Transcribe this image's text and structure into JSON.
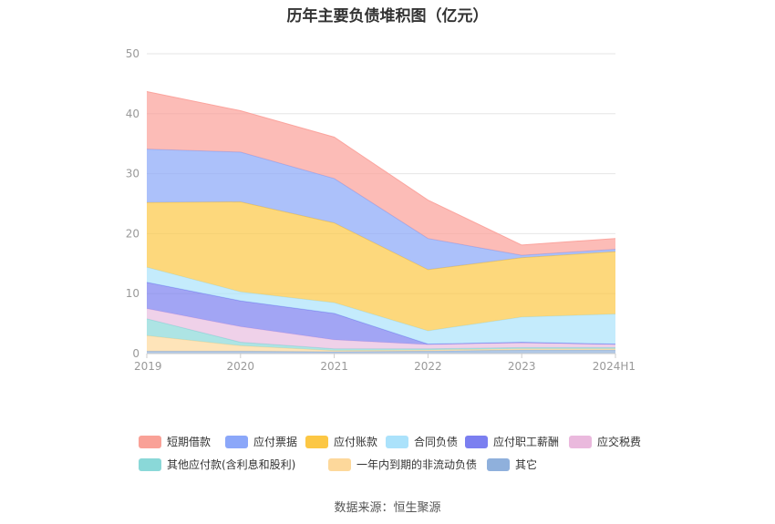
{
  "title": "历年主要负债堆积图（亿元）",
  "source": "数据来源：恒生聚源",
  "chart_data": {
    "type": "area",
    "stacked": true,
    "categories": [
      "2019",
      "2020",
      "2021",
      "2022",
      "2023",
      "2024H1"
    ],
    "ylim": [
      0,
      50
    ],
    "yticks": [
      0,
      10,
      20,
      30,
      40,
      50
    ],
    "grid": true,
    "legend_position": "bottom",
    "series": [
      {
        "name": "其它",
        "color": "#8fb0dc",
        "values": [
          0.4,
          0.4,
          0.3,
          0.4,
          0.6,
          0.6
        ]
      },
      {
        "name": "一年内到期的非流动负债",
        "color": "#fdd89b",
        "values": [
          2.6,
          0.9,
          0.2,
          0.2,
          0.2,
          0.2
        ]
      },
      {
        "name": "其他应付款(含利息和股利)",
        "color": "#8ad8d8",
        "values": [
          2.8,
          0.6,
          0.3,
          0.2,
          0.2,
          0.2
        ]
      },
      {
        "name": "应交税费",
        "color": "#e8bde0",
        "values": [
          1.7,
          2.6,
          1.5,
          0.7,
          0.8,
          0.5
        ]
      },
      {
        "name": "应付职工薪酬",
        "color": "#7b7ff0",
        "values": [
          4.4,
          4.3,
          4.4,
          0.1,
          0.1,
          0.1
        ]
      },
      {
        "name": "合同负债",
        "color": "#abe2fb",
        "values": [
          2.5,
          1.5,
          1.8,
          2.2,
          4.2,
          5.0
        ]
      },
      {
        "name": "应付账款",
        "color": "#fcc744",
        "values": [
          10.8,
          15.0,
          13.3,
          10.2,
          9.9,
          10.4
        ]
      },
      {
        "name": "应付票据",
        "color": "#89a6f8",
        "values": [
          8.9,
          8.3,
          7.4,
          5.2,
          0.4,
          0.4
        ]
      },
      {
        "name": "短期借款",
        "color": "#fb9f98",
        "values": [
          9.6,
          6.9,
          6.9,
          6.4,
          1.7,
          1.8
        ]
      }
    ]
  },
  "legend": {
    "rows": [
      [
        {
          "label": "短期借款",
          "color": "#f9a197"
        },
        {
          "label": "应付票据",
          "color": "#8ba7f9"
        },
        {
          "label": "应付账款",
          "color": "#fcc744"
        },
        {
          "label": "合同负债",
          "color": "#abe2fb"
        },
        {
          "label": "应付职工薪酬",
          "color": "#7b7ff0"
        },
        {
          "label": "应交税费",
          "color": "#eab9dd"
        }
      ],
      [
        {
          "label": "其他应付款(含利息和股利)",
          "color": "#8ad8d8"
        },
        {
          "label": "一年内到期的非流动负债",
          "color": "#fdd89b"
        },
        {
          "label": "其它",
          "color": "#8fb0dc"
        }
      ]
    ]
  }
}
